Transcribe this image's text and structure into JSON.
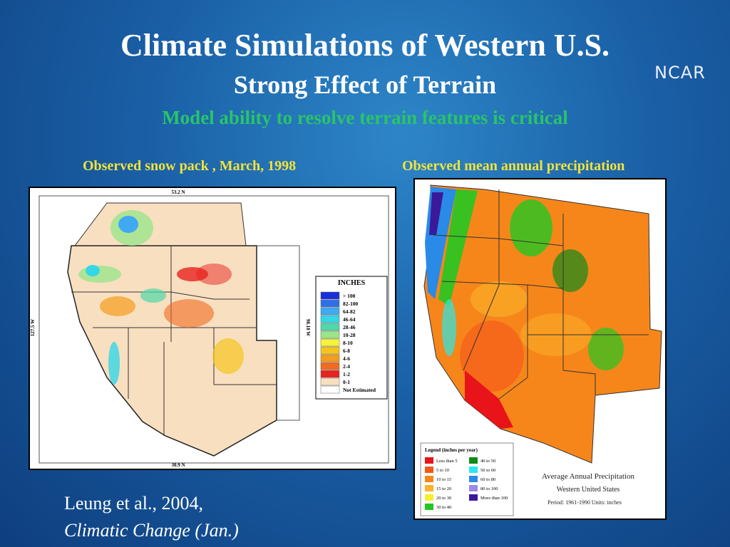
{
  "header": {
    "title": "Climate Simulations of  Western U.S.",
    "subtitle": "Strong Effect of Terrain",
    "tagline": "Model ability to resolve terrain features is critical",
    "logo": "NCAR"
  },
  "panels": [
    {
      "caption": "Observed snow pack , March, 1998",
      "map": {
        "top_label": "53.2 N",
        "bottom_label": "30.9 N",
        "left_label": "127.5 W",
        "right_label": "98.18 W"
      },
      "legend": {
        "title": "INCHES",
        "items": [
          {
            "label": "> 100",
            "color": "#1a2fd8"
          },
          {
            "label": "82-100",
            "color": "#2f6fe8"
          },
          {
            "label": "64-82",
            "color": "#3fa9f2"
          },
          {
            "label": "46-64",
            "color": "#35d6e6"
          },
          {
            "label": "28-46",
            "color": "#4fd9a8"
          },
          {
            "label": "10-28",
            "color": "#9be58a"
          },
          {
            "label": "8-10",
            "color": "#f7f23a"
          },
          {
            "label": "6-8",
            "color": "#f5c51e"
          },
          {
            "label": "4-6",
            "color": "#f59b1e"
          },
          {
            "label": "2-4",
            "color": "#f26a1e"
          },
          {
            "label": "1-2",
            "color": "#e8221e"
          },
          {
            "label": "0-1",
            "color": "#f8dfc0"
          },
          {
            "label": "Not Estimated",
            "color": "#ffffff"
          }
        ]
      }
    },
    {
      "caption": "Observed mean annual precipitation",
      "map": {
        "title": "Average Annual Precipitation",
        "subtitle": "Western United States",
        "note": "Period: 1961-1990   Units: inches"
      },
      "legend": {
        "title": "Legend (inches per year)",
        "items": [
          {
            "label": "Less than 5",
            "color": "#e8141a"
          },
          {
            "label": "5 to 10",
            "color": "#f5561a"
          },
          {
            "label": "10 to 15",
            "color": "#f7861a"
          },
          {
            "label": "15 to 20",
            "color": "#f9b42a"
          },
          {
            "label": "20 to 30",
            "color": "#f7f02a"
          },
          {
            "label": "30 to 40",
            "color": "#22c822"
          },
          {
            "label": "40 to 50",
            "color": "#118a1a"
          },
          {
            "label": "50 to 60",
            "color": "#2ae8e8"
          },
          {
            "label": "60 to 80",
            "color": "#2a8ae8"
          },
          {
            "label": "80 to 100",
            "color": "#9a8ae8"
          },
          {
            "label": "More than 100",
            "color": "#3a1a9a"
          }
        ]
      }
    }
  ],
  "citation": {
    "line1": "Leung et al., 2004,",
    "line2": "Climatic Change (Jan.)"
  }
}
